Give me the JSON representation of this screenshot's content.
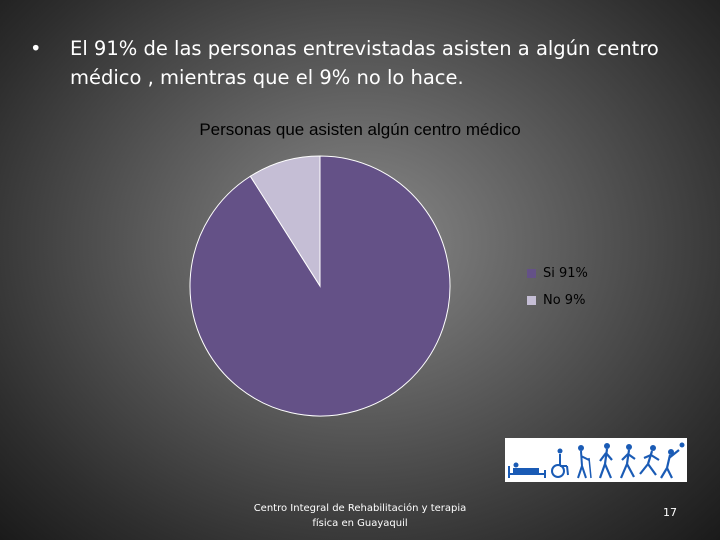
{
  "slide": {
    "bullet_symbol": "•",
    "bullet_text": "El 91% de las personas entrevistadas asisten a algún centro médico , mientras que el 9% no lo hace.",
    "footer_text": "Centro Integral de Rehabilitación y terapia física en Guayaquil",
    "page_number": "17"
  },
  "colors": {
    "si": "#645187",
    "no": "#c5bed5"
  },
  "chart_data": {
    "type": "pie",
    "title": "Personas que asisten algún centro médico",
    "categories": [
      "Si 91%",
      "No 9%"
    ],
    "values": [
      91,
      9
    ],
    "legend_position": "right"
  },
  "logo": {
    "icon_names": [
      "hospital-bed-icon",
      "wheelchair-icon",
      "walker-icon",
      "walking-person-icon",
      "person-walking-icon",
      "running-person-icon",
      "throwing-ball-icon"
    ]
  }
}
